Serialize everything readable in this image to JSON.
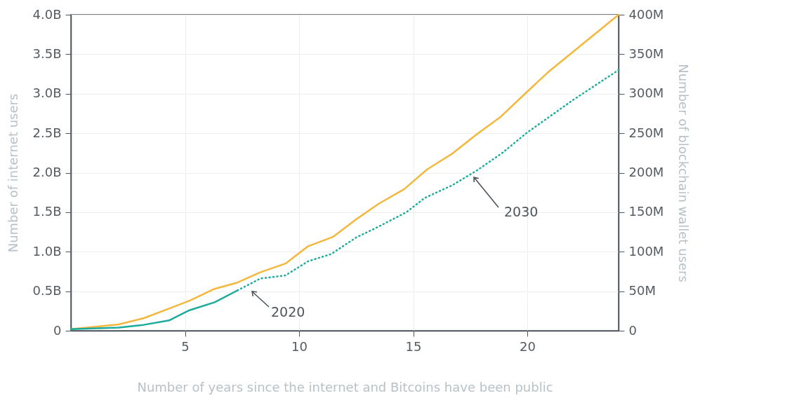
{
  "chart_data": {
    "type": "line",
    "xlabel": "Number of years since the internet and Bitcoins have been public",
    "ylabel": "Number of internet users",
    "y2label": "Number of blockchain wallet users",
    "xlim": [
      0,
      24
    ],
    "xticks": [
      5,
      10,
      15,
      20
    ],
    "ylim": [
      0,
      4
    ],
    "yticks": [
      {
        "value": 0,
        "label": "0"
      },
      {
        "value": 0.5,
        "label": "0.5B"
      },
      {
        "value": 1,
        "label": "1.0B"
      },
      {
        "value": 1.5,
        "label": "1.5B"
      },
      {
        "value": 2,
        "label": "2.0B"
      },
      {
        "value": 2.5,
        "label": "2.5B"
      },
      {
        "value": 3,
        "label": "3.0B"
      },
      {
        "value": 3.5,
        "label": "3.5B"
      },
      {
        "value": 4,
        "label": "4.0B"
      }
    ],
    "y2lim": [
      0,
      400
    ],
    "y2ticks": [
      0,
      {
        "value": 50,
        "label": "50M"
      },
      {
        "value": 100,
        "label": "100M"
      },
      {
        "value": 150,
        "label": "150M"
      },
      {
        "value": 200,
        "label": "200M"
      },
      {
        "value": 250,
        "label": "250M"
      },
      {
        "value": 300,
        "label": "300M"
      },
      {
        "value": 350,
        "label": "350M"
      },
      {
        "value": 400,
        "label": "400M"
      }
    ],
    "grid": true,
    "marker": "none",
    "series": [
      {
        "color": "#f4b73b",
        "line_style": "solid",
        "x": [
          0,
          2.1,
          3.2,
          4.2,
          5.2,
          6.3,
          7.3,
          8.3,
          9.4,
          10.4,
          11.5,
          12.5,
          13.5,
          14.6,
          15.6,
          16.7,
          17.8,
          18.8,
          19.9,
          20.9,
          24
        ],
        "values": [
          0.02,
          0.08,
          0.16,
          0.27,
          0.38,
          0.53,
          0.61,
          0.74,
          0.85,
          1.07,
          1.19,
          1.41,
          1.61,
          1.79,
          2.04,
          2.24,
          2.49,
          2.7,
          3.0,
          3.27,
          4.0
        ]
      },
      {
        "color": "#1aab9b",
        "line_style": "solid",
        "axis": "y2",
        "x": [
          0,
          2.1,
          3.1,
          4.3,
          5.2,
          6.3,
          7.3
        ],
        "values": [
          2,
          4,
          7,
          13,
          26,
          36,
          51
        ]
      },
      {
        "color": "#1aab9b",
        "line_style": "dotted",
        "axis": "y2",
        "x": [
          7.3,
          8.3,
          9.4,
          10.4,
          11.4,
          12.5,
          13.5,
          14.7,
          15.5,
          16.7,
          17.8,
          18.9,
          20.0,
          22.0,
          24
        ],
        "values": [
          51,
          66,
          70,
          88,
          97,
          118,
          132,
          150,
          168,
          184,
          203,
          225,
          251,
          292,
          330
        ]
      }
    ],
    "annotations": [
      "2020",
      "2030"
    ]
  }
}
